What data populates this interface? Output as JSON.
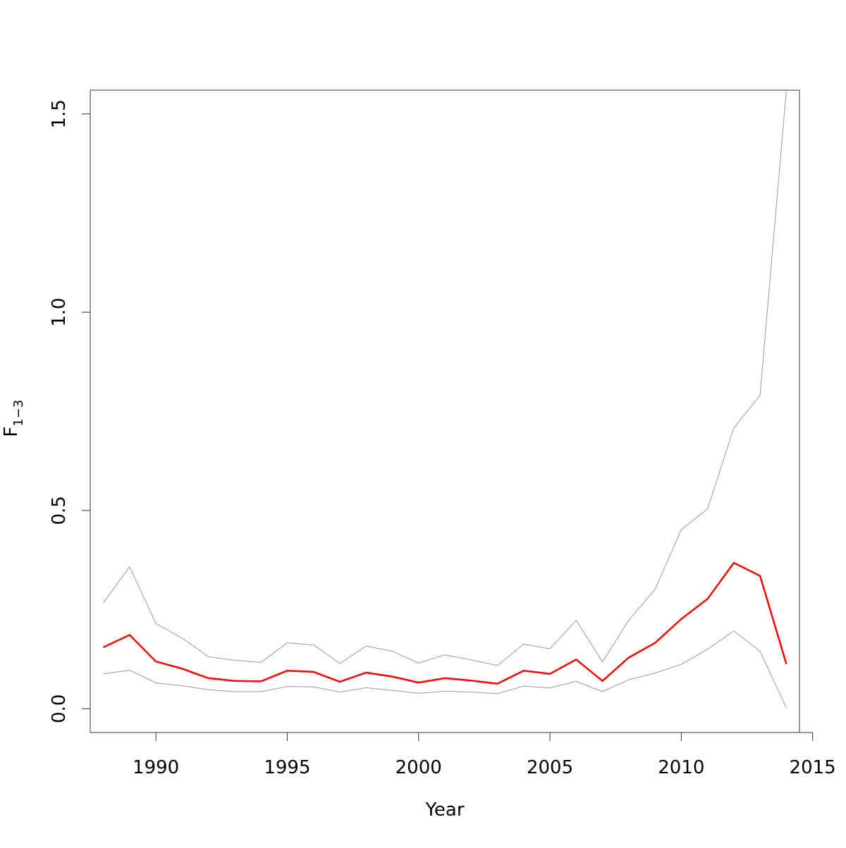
{
  "chart_data": {
    "type": "line",
    "title": "",
    "xlabel": "Year",
    "ylabel": {
      "main": "F",
      "sub": "1−3"
    },
    "xlim": [
      1987.5,
      2014.5
    ],
    "ylim": [
      -0.06,
      1.56
    ],
    "xticks": [
      1990,
      1995,
      2000,
      2005,
      2010,
      2015
    ],
    "xtick_labels": [
      "1990",
      "1995",
      "2000",
      "2005",
      "2010",
      "2015"
    ],
    "yticks": [
      0.0,
      0.5,
      1.0,
      1.5
    ],
    "ytick_labels": [
      "0.0",
      "0.5",
      "1.0",
      "1.5"
    ],
    "grid": false,
    "legend": "none",
    "x": [
      1988,
      1989,
      1990,
      1991,
      1992,
      1993,
      1994,
      1995,
      1996,
      1997,
      1998,
      1999,
      2000,
      2001,
      2002,
      2003,
      2004,
      2005,
      2006,
      2007,
      2008,
      2009,
      2010,
      2011,
      2012,
      2013,
      2014
    ],
    "series": [
      {
        "values": [
          0.267,
          0.358,
          0.215,
          0.178,
          0.131,
          0.122,
          0.117,
          0.166,
          0.161,
          0.114,
          0.158,
          0.145,
          0.115,
          0.136,
          0.123,
          0.109,
          0.163,
          0.151,
          0.223,
          0.118,
          0.223,
          0.301,
          0.452,
          0.504,
          0.708,
          0.791,
          1.56
        ],
        "color": "#9a9a9a",
        "width": 1
      },
      {
        "values": [
          0.155,
          0.186,
          0.119,
          0.101,
          0.077,
          0.07,
          0.069,
          0.096,
          0.093,
          0.068,
          0.091,
          0.081,
          0.066,
          0.077,
          0.071,
          0.063,
          0.096,
          0.088,
          0.124,
          0.07,
          0.129,
          0.166,
          0.226,
          0.277,
          0.368,
          0.335,
          0.113
        ],
        "color": "#ff0000",
        "width": 2.5
      },
      {
        "values": [
          0.088,
          0.097,
          0.065,
          0.058,
          0.048,
          0.043,
          0.043,
          0.056,
          0.055,
          0.042,
          0.053,
          0.046,
          0.039,
          0.044,
          0.042,
          0.038,
          0.057,
          0.052,
          0.069,
          0.043,
          0.073,
          0.09,
          0.112,
          0.15,
          0.196,
          0.145,
          0.002
        ],
        "color": "#9a9a9a",
        "width": 1
      }
    ]
  }
}
